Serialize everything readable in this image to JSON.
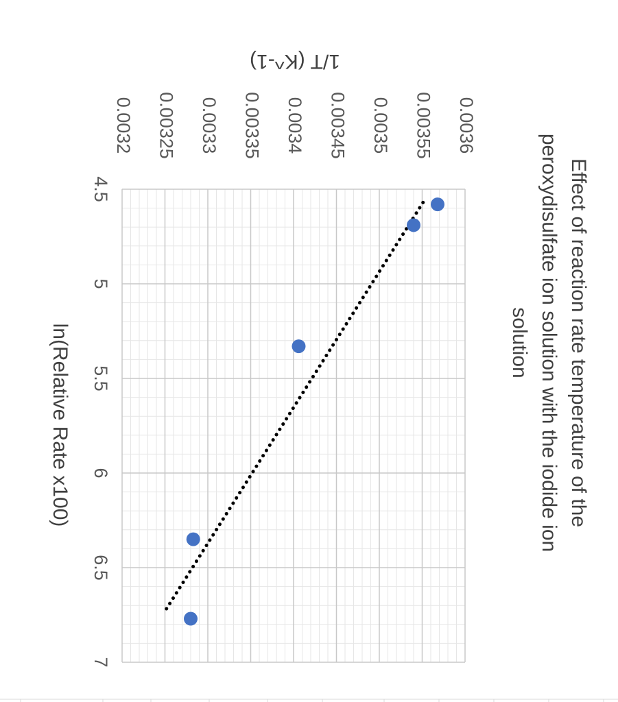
{
  "chart_data": {
    "type": "scatter",
    "title_lines": [
      "Effect of reaction rate temperature of the",
      "peroxydisulfate ion solution with the iodide ion",
      "solution"
    ],
    "xlabel": "ln(Relative Rate x100)",
    "ylabel": "1/T (K^-1)",
    "xlim": [
      4.5,
      7
    ],
    "ylim": [
      0.0032,
      0.0036
    ],
    "x_ticks": [
      "4.5",
      "5",
      "5.5",
      "6",
      "6.5",
      "7"
    ],
    "y_ticks": [
      "0.0032",
      "0.00325",
      "0.0033",
      "0.00335",
      "0.0034",
      "0.00345",
      "0.0035",
      "0.00355",
      "0.0036"
    ],
    "grid": true,
    "minor_grid": true,
    "orientation": "rotated-90-clockwise",
    "points": [
      {
        "x": 4.58,
        "y": 0.003568
      },
      {
        "x": 4.69,
        "y": 0.00354
      },
      {
        "x": 5.33,
        "y": 0.003406
      },
      {
        "x": 6.35,
        "y": 0.003283
      },
      {
        "x": 6.77,
        "y": 0.00328
      }
    ],
    "trendline": {
      "style": "dotted",
      "x": [
        4.57,
        6.73
      ],
      "y": [
        0.003551,
        0.00325
      ]
    },
    "point_color": "#4472c4",
    "trendline_color": "#000000"
  }
}
